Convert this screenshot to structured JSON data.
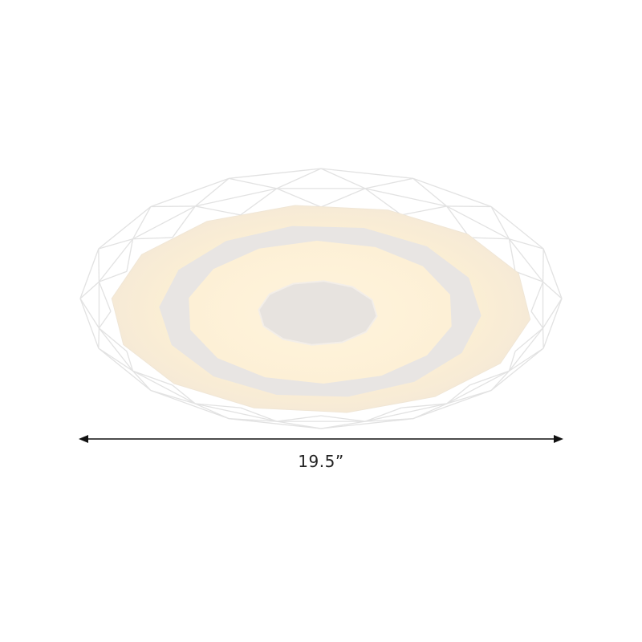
{
  "product": {
    "name_icon": "ceiling-light-image",
    "colors": {
      "glow": "#fdf3dc",
      "glow_center": "#fff6e2",
      "ring": "#e9e6e4",
      "wire": "#eeeeee",
      "dimension_line": "#111111"
    }
  },
  "dimension": {
    "width_label": "19.5”"
  }
}
